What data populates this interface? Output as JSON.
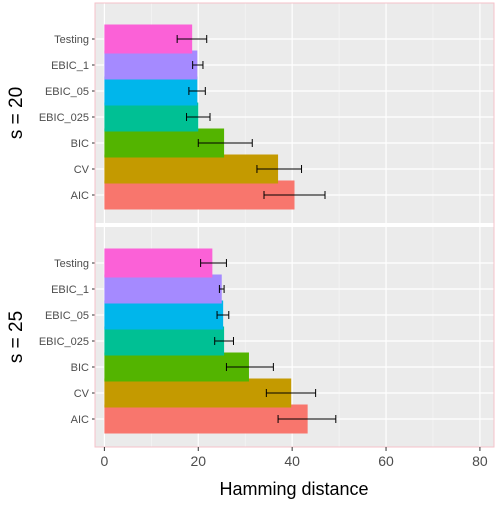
{
  "chart_data": {
    "type": "bar",
    "orientation": "horizontal",
    "xlabel": "Hamming distance",
    "xlim": [
      -2,
      83
    ],
    "xticks": [
      0,
      20,
      40,
      60,
      80
    ],
    "grid": true,
    "categories": [
      "AIC",
      "CV",
      "BIC",
      "EBIC_025",
      "EBIC_05",
      "EBIC_1",
      "Testing"
    ],
    "colors": {
      "AIC": "#F8766D",
      "CV": "#C49A00",
      "BIC": "#53B400",
      "EBIC_025": "#00C094",
      "EBIC_05": "#00B6EB",
      "EBIC_1": "#A58AFF",
      "Testing": "#FB61D7"
    },
    "panels": [
      {
        "label": "s = 20",
        "values": [
          40.5,
          37,
          25.5,
          20,
          19.8,
          19.8,
          18.7
        ],
        "error_low": [
          34,
          32.5,
          20,
          17.5,
          18,
          18.8,
          15.5
        ],
        "error_high": [
          47,
          42,
          31.5,
          22.5,
          21.5,
          21,
          21.8
        ]
      },
      {
        "label": "s = 25",
        "values": [
          43.3,
          39.8,
          30.8,
          25.5,
          25.3,
          25,
          23
        ],
        "error_low": [
          37,
          34.5,
          26,
          23.5,
          24,
          24.5,
          20.5
        ],
        "error_high": [
          49.3,
          45,
          36,
          27.5,
          26.5,
          25.5,
          26
        ]
      }
    ]
  }
}
